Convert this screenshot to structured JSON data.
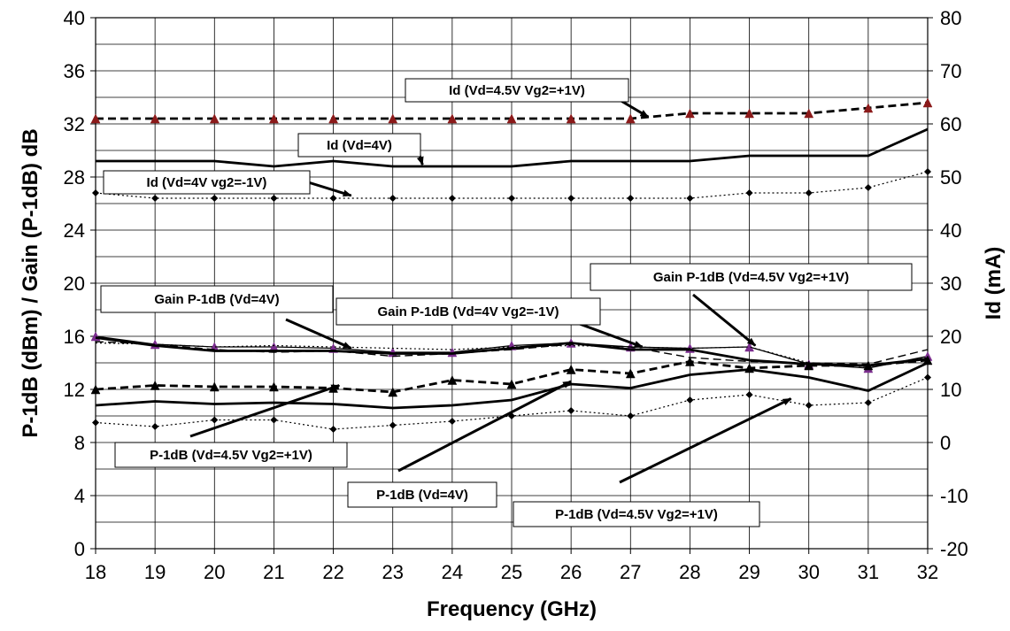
{
  "chart_data": {
    "type": "line",
    "title": "",
    "xlabel": "Frequency (GHz)",
    "ylabel": "P-1dB (dBm) / Gain (P-1dB) dB",
    "y2label": "Id (mA)",
    "x": [
      18,
      19,
      20,
      21,
      22,
      23,
      24,
      25,
      26,
      27,
      28,
      29,
      30,
      31,
      32
    ],
    "xlim": [
      18,
      32
    ],
    "ylim": [
      0,
      40
    ],
    "y2lim": [
      -20,
      80
    ],
    "yticks": [
      "0",
      "4",
      "8",
      "12",
      "16",
      "20",
      "24",
      "28",
      "32",
      "36",
      "40"
    ],
    "y2ticks": [
      "-20",
      "-10",
      "0",
      "10",
      "20",
      "30",
      "40",
      "50",
      "60",
      "70",
      "80"
    ],
    "xticks": [
      "18",
      "19",
      "20",
      "21",
      "22",
      "23",
      "24",
      "25",
      "26",
      "27",
      "28",
      "29",
      "30",
      "31",
      "32"
    ],
    "grid": true,
    "series": [
      {
        "name": "Id (Vd=4.5V  Vg2=+1V)",
        "axis": "y2",
        "style": "dashed-thick",
        "marker": "triangle",
        "color": "#8b1a1a",
        "values": [
          61,
          61,
          61,
          61,
          61,
          61,
          61,
          61,
          61,
          61,
          62,
          62,
          62,
          63,
          64
        ]
      },
      {
        "name": "Id (Vd=4V)",
        "axis": "y2",
        "style": "solid-thick",
        "marker": "none",
        "color": "#000000",
        "values": [
          53,
          53,
          53,
          52,
          53,
          52,
          52,
          52,
          53,
          53,
          53,
          54,
          54,
          54,
          59
        ]
      },
      {
        "name": "Id (Vd=4V vg2=-1V)",
        "axis": "y2",
        "style": "dotted",
        "marker": "diamond",
        "color": "#000000",
        "values": [
          47,
          46,
          46,
          46,
          46,
          46,
          46,
          46,
          46,
          46,
          46,
          47,
          47,
          48,
          51
        ]
      },
      {
        "name": "Gain P-1dB (Vd=4.5V  Vg2=+1V)",
        "axis": "y",
        "style": "solid-thin",
        "marker": "triangle",
        "color": "#7b2d8e",
        "values": [
          16.0,
          15.4,
          15.2,
          15.2,
          15.1,
          14.8,
          14.8,
          15.3,
          15.5,
          15.2,
          15.1,
          15.2,
          13.9,
          13.6,
          14.5
        ]
      },
      {
        "name": "Gain P-1dB (Vd=4V)",
        "axis": "y",
        "style": "solid-thick",
        "marker": "none",
        "color": "#000000",
        "values": [
          15.9,
          15.3,
          14.9,
          14.9,
          14.9,
          14.7,
          14.7,
          15.1,
          15.5,
          15.0,
          15.0,
          14.2,
          13.9,
          13.8,
          14.3
        ]
      },
      {
        "name": "Gain P-1dB (Vd=4V Vg2=-1V)",
        "axis": "y",
        "style": "dashed-thin",
        "marker": "none",
        "color": "#000000",
        "values": [
          15.6,
          15.4,
          15.0,
          14.8,
          14.9,
          14.5,
          14.7,
          15.0,
          15.4,
          15.2,
          14.4,
          14.1,
          14.0,
          13.9,
          15.0
        ]
      },
      {
        "name": "Gain P-1dB (Vd=4V) dotted",
        "axis": "y",
        "style": "dotted",
        "marker": "none",
        "color": "#000000",
        "values": [
          15.5,
          15.4,
          15.2,
          15.3,
          15.2,
          15.1,
          15.0,
          15.2,
          15.3,
          15.2,
          15.1,
          15.2,
          14.0,
          13.7,
          14.4
        ]
      },
      {
        "name": "P-1dB (Vd=4.5V Vg2=+1V)",
        "axis": "y",
        "style": "dashed-thick",
        "marker": "triangle",
        "color": "#000000",
        "values": [
          12.0,
          12.3,
          12.2,
          12.2,
          12.1,
          11.8,
          12.7,
          12.4,
          13.5,
          13.2,
          14.1,
          13.6,
          13.8,
          13.8,
          14.2
        ]
      },
      {
        "name": "P-1dB (Vd=4V)",
        "axis": "y",
        "style": "solid-thick",
        "marker": "none",
        "color": "#000000",
        "values": [
          10.8,
          11.1,
          10.9,
          11.0,
          10.9,
          10.6,
          10.8,
          11.2,
          12.4,
          12.1,
          13.1,
          13.5,
          12.9,
          11.9,
          14.0
        ]
      },
      {
        "name": "P-1dB dotted",
        "axis": "y",
        "style": "dotted",
        "marker": "diamond",
        "color": "#000000",
        "values": [
          9.5,
          9.2,
          9.7,
          9.7,
          9.0,
          9.3,
          9.6,
          10.0,
          10.4,
          10.0,
          11.2,
          11.6,
          10.8,
          11.0,
          12.9
        ]
      }
    ],
    "annotations": [
      {
        "text": "Id (Vd=4.5V  Vg2=+1V)",
        "target": [
          27.3,
          61.3
        ],
        "axis": "y2"
      },
      {
        "text": "Id (Vd=4V)",
        "target": [
          23.5,
          52.3
        ],
        "axis": "y2"
      },
      {
        "text": "Id (Vd=4V vg2=-1V)",
        "target": [
          22.3,
          46.5
        ],
        "axis": "y2"
      },
      {
        "text": "Gain P-1dB (Vd=4V)",
        "target": [
          22.3,
          15.1
        ],
        "axis": "y"
      },
      {
        "text": "Gain P-1dB (Vd=4V Vg2=-1V)",
        "target": [
          27.2,
          15.2
        ],
        "axis": "y"
      },
      {
        "text": "Gain P-1dB (Vd=4.5V  Vg2=+1V)",
        "target": [
          29.1,
          15.3
        ],
        "axis": "y"
      },
      {
        "text": "P-1dB (Vd=4.5V Vg2=+1V)",
        "target": [
          22.1,
          12.3
        ],
        "axis": "y"
      },
      {
        "text": "P-1dB (Vd=4V)",
        "target": [
          26.0,
          12.6
        ],
        "axis": "y"
      },
      {
        "text": "P-1dB (Vd=4.5V Vg2=+1V)",
        "target": [
          29.7,
          11.3
        ],
        "axis": "y"
      }
    ]
  }
}
